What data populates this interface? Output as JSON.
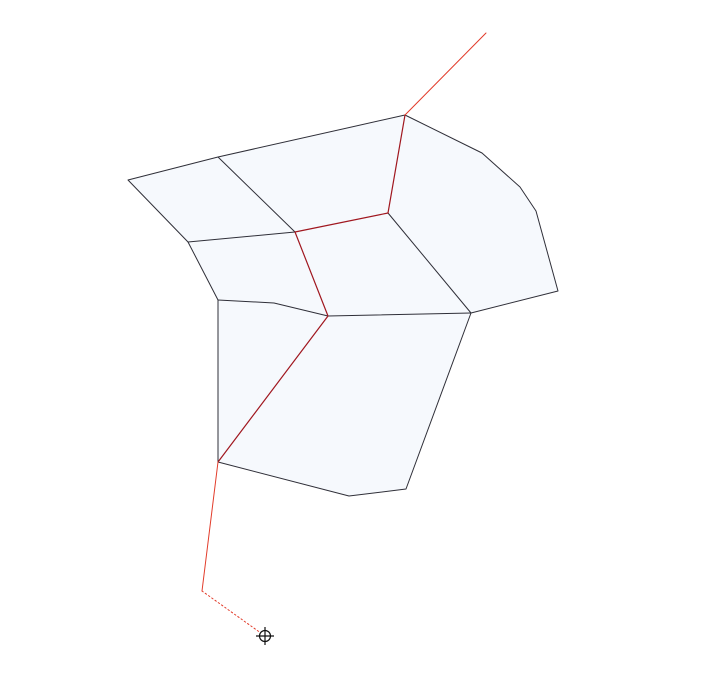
{
  "canvas": {
    "background": "#ffffff",
    "face_fill": "#f6f9fd",
    "edge_color": "#2f2f38",
    "path_color": "#a0171f",
    "ray_color": "#e23b2a"
  },
  "cursor": {
    "icon": "crosshair-target-icon"
  }
}
